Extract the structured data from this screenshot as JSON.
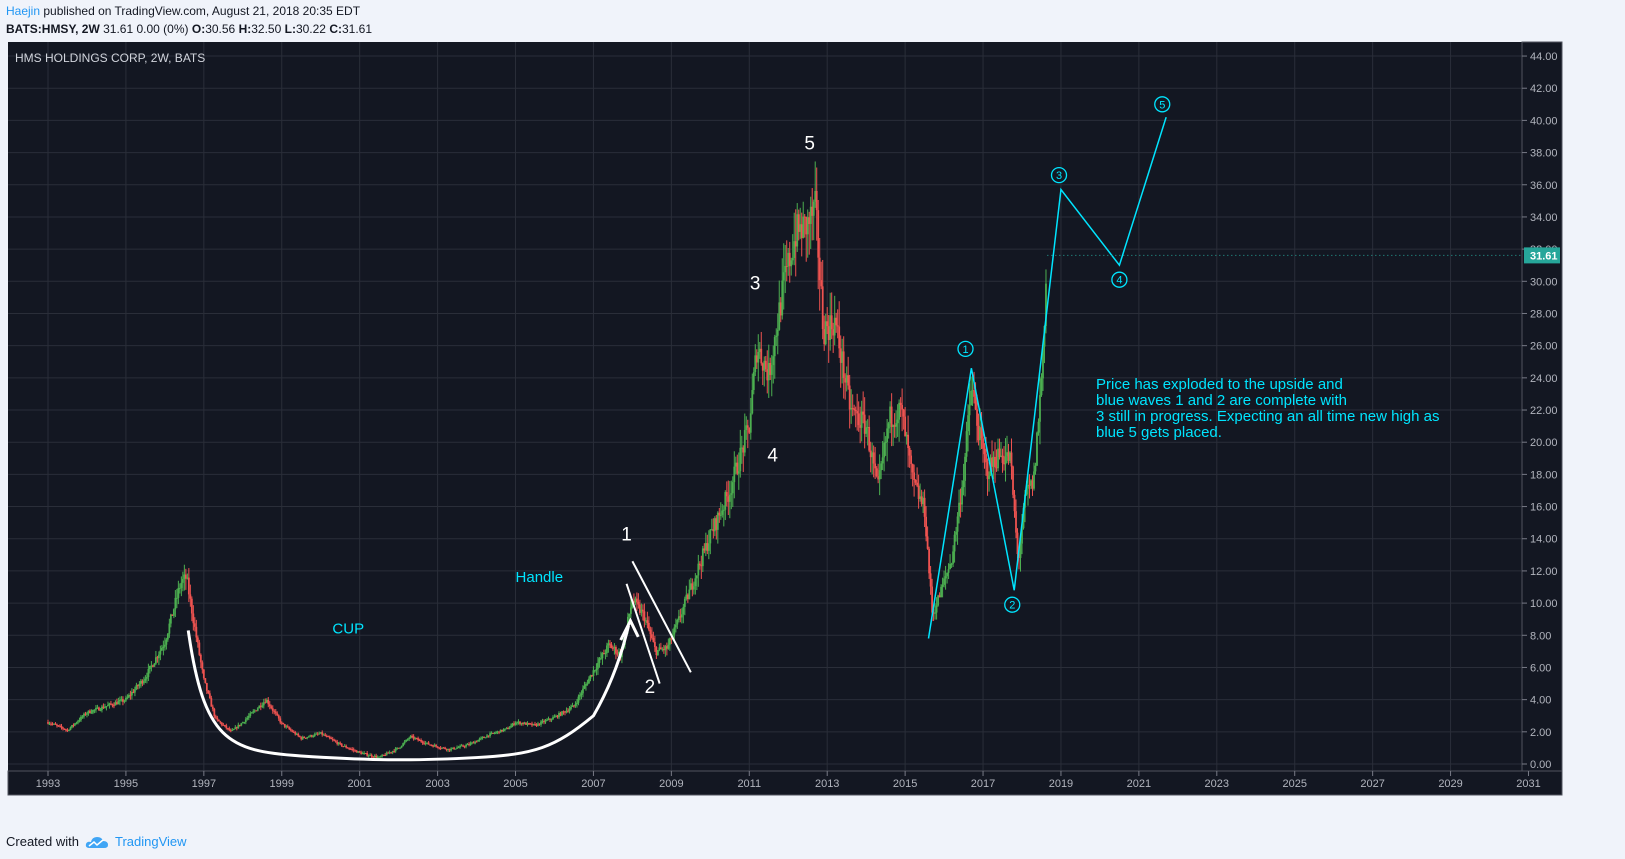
{
  "header": {
    "author": "Haejin",
    "published_text": "published on TradingView.com, August 21, 2018 20:35 EDT",
    "symbol": "BATS:HMSY, 2W",
    "quote": "31.61 0.00 (0%)",
    "ohlc": [
      {
        "label": "O:",
        "value": "30.56"
      },
      {
        "label": "H:",
        "value": "32.50"
      },
      {
        "label": "L:",
        "value": "30.22"
      },
      {
        "label": "C:",
        "value": "31.61"
      }
    ]
  },
  "footer": {
    "created_with": "Created with",
    "brand": "TradingView"
  },
  "colors": {
    "background": "#131722",
    "grid": "#2a2e39",
    "up": "#4caf50",
    "down": "#ef5350",
    "annotation": "#00e5ff",
    "price_label": "#26a69a"
  },
  "chart_data": {
    "type": "candlestick",
    "title": "HMS HOLDINGS CORP, 2W, BATS",
    "x_ticks": [
      "1993",
      "1995",
      "1997",
      "1999",
      "2001",
      "2003",
      "2005",
      "2007",
      "2009",
      "2011",
      "2013",
      "2015",
      "2017",
      "2019",
      "2021",
      "2023",
      "2025",
      "2027",
      "2029",
      "2031"
    ],
    "y_ticks": [
      "0.00",
      "2.00",
      "4.00",
      "6.00",
      "8.00",
      "10.00",
      "12.00",
      "14.00",
      "16.00",
      "18.00",
      "20.00",
      "22.00",
      "24.00",
      "26.00",
      "28.00",
      "30.00",
      "32.00",
      "34.00",
      "36.00",
      "38.00",
      "40.00",
      "42.00",
      "44.00"
    ],
    "xlim": [
      1992.5,
      2031.5
    ],
    "ylim": [
      -0.5,
      45
    ],
    "last_price": "31.61",
    "price_path": [
      [
        1993.0,
        2.6
      ],
      [
        1993.5,
        2.1
      ],
      [
        1994.0,
        3.2
      ],
      [
        1994.5,
        3.6
      ],
      [
        1995.0,
        4.0
      ],
      [
        1995.5,
        5.4
      ],
      [
        1996.0,
        7.6
      ],
      [
        1996.4,
        11.2
      ],
      [
        1996.55,
        11.6
      ],
      [
        1996.8,
        8.0
      ],
      [
        1997.0,
        5.2
      ],
      [
        1997.3,
        2.8
      ],
      [
        1997.7,
        2.0
      ],
      [
        1998.0,
        2.6
      ],
      [
        1998.3,
        3.3
      ],
      [
        1998.6,
        4.0
      ],
      [
        1999.0,
        2.5
      ],
      [
        1999.5,
        1.6
      ],
      [
        2000.0,
        1.9
      ],
      [
        2000.5,
        1.2
      ],
      [
        2001.0,
        0.7
      ],
      [
        2001.5,
        0.4
      ],
      [
        2002.0,
        1.0
      ],
      [
        2002.3,
        1.7
      ],
      [
        2002.8,
        1.2
      ],
      [
        2003.3,
        0.9
      ],
      [
        2003.8,
        1.2
      ],
      [
        2004.3,
        1.8
      ],
      [
        2004.8,
        2.2
      ],
      [
        2005.0,
        2.6
      ],
      [
        2005.5,
        2.4
      ],
      [
        2006.0,
        2.9
      ],
      [
        2006.5,
        3.6
      ],
      [
        2007.0,
        5.8
      ],
      [
        2007.4,
        7.4
      ],
      [
        2007.7,
        6.8
      ],
      [
        2008.0,
        10.2
      ],
      [
        2008.3,
        9.2
      ],
      [
        2008.6,
        7.0
      ],
      [
        2008.9,
        7.2
      ],
      [
        2009.2,
        9.0
      ],
      [
        2009.6,
        11.6
      ],
      [
        2010.0,
        14.2
      ],
      [
        2010.5,
        17.0
      ],
      [
        2011.0,
        21.0
      ],
      [
        2011.2,
        26.0
      ],
      [
        2011.5,
        24.2
      ],
      [
        2011.9,
        30.0
      ],
      [
        2012.2,
        33.0
      ],
      [
        2012.5,
        33.5
      ],
      [
        2012.7,
        34.5
      ],
      [
        2012.9,
        27.0
      ],
      [
        2013.2,
        27.5
      ],
      [
        2013.6,
        22.0
      ],
      [
        2014.0,
        21.0
      ],
      [
        2014.3,
        17.0
      ],
      [
        2014.6,
        21.5
      ],
      [
        2014.9,
        22.0
      ],
      [
        2015.2,
        17.5
      ],
      [
        2015.5,
        15.8
      ],
      [
        2015.7,
        9.2
      ],
      [
        2015.9,
        10.6
      ],
      [
        2016.2,
        12.8
      ],
      [
        2016.5,
        18.0
      ],
      [
        2016.7,
        23.5
      ],
      [
        2016.9,
        20.5
      ],
      [
        2017.1,
        18.2
      ],
      [
        2017.4,
        19.2
      ],
      [
        2017.7,
        19.0
      ],
      [
        2017.9,
        12.5
      ],
      [
        2018.1,
        16.8
      ],
      [
        2018.3,
        17.5
      ],
      [
        2018.5,
        24.0
      ],
      [
        2018.65,
        31.61
      ]
    ],
    "series": [
      {
        "name": "white-elliott",
        "points": [
          [
            1996.7,
            8.2
          ],
          [
            2008.0,
            12.5
          ],
          [
            2008.8,
            5.0
          ],
          [
            2011.1,
            27.5
          ],
          [
            2012.0,
            21.0
          ],
          [
            2012.6,
            36.5
          ]
        ]
      },
      {
        "name": "blue-elliott-projection",
        "points": [
          [
            2015.6,
            7.8
          ],
          [
            2016.7,
            24.6
          ],
          [
            2017.8,
            10.8
          ],
          [
            2019.0,
            35.7
          ],
          [
            2020.5,
            31.0
          ],
          [
            2021.7,
            40.2
          ]
        ]
      }
    ],
    "annotations": {
      "cup": "CUP",
      "handle": "Handle",
      "white_wave_labels": [
        "1",
        "2",
        "3",
        "4",
        "5"
      ],
      "blue_wave_labels": [
        "1",
        "2",
        "3",
        "4",
        "5"
      ],
      "note": [
        "Price has exploded to the upside and",
        "blue waves 1 and 2 are complete with",
        "3 still in progress. Expecting an all time new high as",
        "blue 5 gets placed."
      ]
    }
  }
}
